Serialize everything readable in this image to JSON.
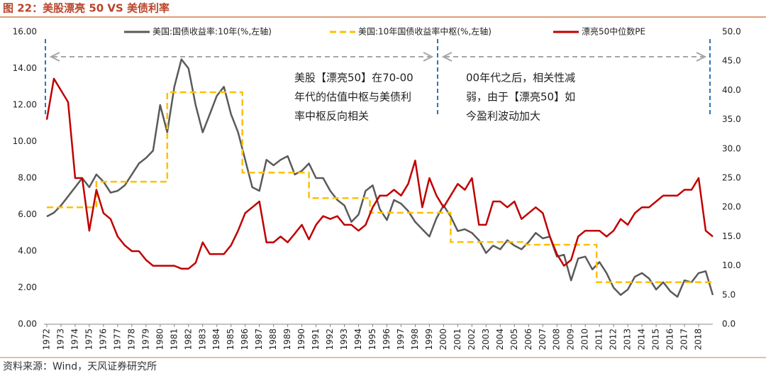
{
  "title": "图 22：美股漂亮 50 VS 美债利率",
  "source": "资料来源：Wind，天风证券研究所",
  "chart_data": {
    "type": "line",
    "annotations": [
      [
        "美股【漂亮50】在70-00",
        "年代的估值中枢与美债利",
        "率中枢反向相关"
      ],
      [
        "00年代之后，相关性减",
        "弱，由于【漂亮50】如",
        "今盈利波动加大"
      ]
    ],
    "x": [
      1972,
      1972.5,
      1973,
      1973.5,
      1974,
      1974.5,
      1975,
      1975.5,
      1976,
      1976.5,
      1977,
      1977.5,
      1978,
      1978.5,
      1979,
      1979.5,
      1980,
      1980.5,
      1981,
      1981.5,
      1982,
      1982.5,
      1983,
      1983.5,
      1984,
      1984.5,
      1985,
      1985.5,
      1986,
      1986.5,
      1987,
      1987.5,
      1988,
      1988.5,
      1989,
      1989.5,
      1990,
      1990.5,
      1991,
      1991.5,
      1992,
      1992.5,
      1993,
      1993.5,
      1994,
      1994.5,
      1995,
      1995.5,
      1996,
      1996.5,
      1997,
      1997.5,
      1998,
      1998.5,
      1999,
      1999.5,
      2000,
      2000.5,
      2001,
      2001.5,
      2002,
      2002.5,
      2003,
      2003.5,
      2004,
      2004.5,
      2005,
      2005.5,
      2006,
      2006.5,
      2007,
      2007.5,
      2008,
      2008.5,
      2009,
      2009.5,
      2010,
      2010.5,
      2011,
      2011.5,
      2012,
      2012.5,
      2013,
      2013.5,
      2014,
      2014.5,
      2015,
      2015.5,
      2016,
      2016.5,
      2017,
      2017.5,
      2018,
      2018.5,
      2019
    ],
    "xlim": [
      1971.8,
      2019.0
    ],
    "xticks": [
      1972,
      1973,
      1974,
      1975,
      1976,
      1977,
      1978,
      1979,
      1980,
      1981,
      1982,
      1983,
      1984,
      1985,
      1986,
      1987,
      1988,
      1989,
      1990,
      1991,
      1992,
      1993,
      1994,
      1995,
      1996,
      1997,
      1998,
      1999,
      2000,
      2001,
      2002,
      2003,
      2004,
      2005,
      2006,
      2007,
      2008,
      2009,
      2010,
      2011,
      2012,
      2013,
      2014,
      2015,
      2016,
      2017,
      2018
    ],
    "ylim": [
      0,
      16
    ],
    "yticks": [
      {
        "value": 0,
        "label": "0.00"
      },
      {
        "value": 2,
        "label": "2.00"
      },
      {
        "value": 4,
        "label": "4.00"
      },
      {
        "value": 6,
        "label": "6.00"
      },
      {
        "value": 8,
        "label": "8.00"
      },
      {
        "value": 10,
        "label": "10.00"
      },
      {
        "value": 12,
        "label": "12.00"
      },
      {
        "value": 14,
        "label": "14.00"
      },
      {
        "value": 16,
        "label": "16.00"
      }
    ],
    "y2lim": [
      0,
      50
    ],
    "y2ticks": [
      {
        "value": 0,
        "label": "0.0"
      },
      {
        "value": 5,
        "label": "5.0"
      },
      {
        "value": 10,
        "label": "10.0"
      },
      {
        "value": 15,
        "label": "15.0"
      },
      {
        "value": 20,
        "label": "20.0"
      },
      {
        "value": 25,
        "label": "25.0"
      },
      {
        "value": 30,
        "label": "30.0"
      },
      {
        "value": 35,
        "label": "35.0"
      },
      {
        "value": 40,
        "label": "40.0"
      },
      {
        "value": 45,
        "label": "45.0"
      },
      {
        "value": 50,
        "label": "50.0"
      }
    ],
    "series": [
      {
        "name": "美国:国债收益率:10年(%,左轴)",
        "color": "#5a5a5a",
        "style": "solid",
        "values": [
          5.9,
          6.1,
          6.5,
          7.0,
          7.5,
          8.0,
          7.5,
          8.2,
          7.8,
          7.2,
          7.3,
          7.6,
          8.2,
          8.8,
          9.1,
          9.5,
          12.0,
          10.5,
          13.0,
          14.5,
          14.0,
          12.0,
          10.5,
          11.5,
          12.5,
          13.0,
          11.5,
          10.5,
          9.0,
          7.5,
          7.3,
          9.0,
          8.7,
          9.0,
          9.2,
          8.2,
          8.4,
          8.8,
          8.0,
          8.0,
          7.3,
          6.8,
          6.5,
          5.6,
          6.0,
          7.3,
          7.6,
          6.3,
          5.7,
          6.8,
          6.6,
          6.2,
          5.6,
          5.2,
          4.8,
          5.8,
          6.5,
          5.9,
          5.1,
          5.2,
          5.0,
          4.6,
          3.9,
          4.3,
          4.1,
          4.6,
          4.3,
          4.1,
          4.5,
          5.0,
          4.7,
          4.8,
          3.7,
          3.8,
          2.4,
          3.6,
          3.7,
          3.0,
          3.4,
          2.8,
          2.0,
          1.6,
          1.9,
          2.6,
          2.8,
          2.5,
          1.9,
          2.3,
          1.8,
          1.5,
          2.4,
          2.3,
          2.8,
          2.9,
          1.6
        ]
      },
      {
        "name": "美国:10年国债收益率中枢(%,左轴)",
        "color": "#ffc000",
        "style": "dashed",
        "x": [
          1972,
          1975.5,
          1975.5,
          1980.5,
          1980.5,
          1985.8,
          1985.8,
          1990.5,
          1990.5,
          1994.8,
          1994.8,
          2000.5,
          2000.5,
          2005.8,
          2005.8,
          2010.8,
          2010.8,
          2019.0
        ],
        "values": [
          6.4,
          6.4,
          7.8,
          7.8,
          12.7,
          12.7,
          8.3,
          8.3,
          6.9,
          6.9,
          6.1,
          6.1,
          4.5,
          4.5,
          4.35,
          4.35,
          2.3,
          2.3
        ]
      },
      {
        "name": "漂亮50中位数PE",
        "color": "#c00000",
        "style": "solid",
        "axis": "y2",
        "values": [
          35,
          42,
          40,
          38,
          25,
          25,
          16,
          23,
          19,
          18,
          15,
          13.5,
          12.5,
          12.5,
          11,
          10,
          10,
          10,
          10,
          9.5,
          9.5,
          10.5,
          14,
          12,
          12,
          12,
          13.5,
          16,
          19,
          20,
          21,
          14,
          14,
          15,
          14,
          15.5,
          17,
          14.5,
          17,
          18.5,
          18,
          18.5,
          17,
          17,
          16,
          17,
          20,
          22,
          22,
          23,
          22,
          24,
          28,
          20,
          25,
          22,
          20,
          22,
          24,
          23,
          25,
          17,
          17,
          21,
          21,
          20,
          21,
          18,
          19,
          20,
          19,
          15,
          12,
          10,
          11,
          15,
          16,
          16,
          16,
          15,
          16,
          18,
          17,
          19,
          20,
          20,
          21,
          22,
          22,
          22,
          23,
          23,
          25,
          16,
          15
        ]
      }
    ]
  }
}
